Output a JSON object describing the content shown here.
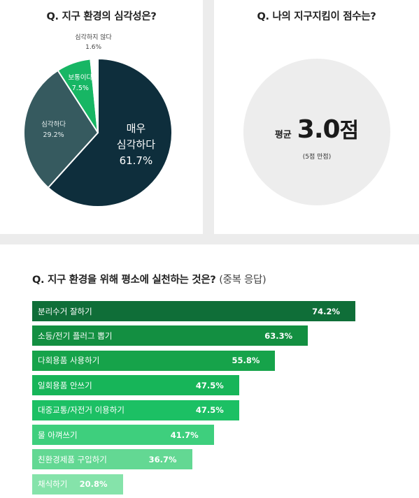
{
  "pie_card": {
    "title": "Q. 지구 환경의 심각성은?"
  },
  "score_card": {
    "title": "Q. 나의 지구지킴이 점수는?",
    "prefix": "평균",
    "value": "3.0",
    "unit": "점",
    "note": "(5점 만점)"
  },
  "bar_card": {
    "title": "Q. 지구 환경을 위해 평소에 실천하는 것은?",
    "subtitle": "(중복 응답)"
  },
  "colors": {
    "pie": [
      "#0e2e3c",
      "#365a5f",
      "#17b664",
      "#ffffff"
    ],
    "bars": [
      "#0f6e38",
      "#138f41",
      "#16a34a",
      "#17b559",
      "#1cc064",
      "#3ecf7d",
      "#63d893",
      "#85e3aa"
    ]
  },
  "chart_data": [
    {
      "type": "pie",
      "title": "Q. 지구 환경의 심각성은?",
      "slices": [
        {
          "name": "매우 심각하다",
          "value": 61.7,
          "label": "61.7%"
        },
        {
          "name": "심각하다",
          "value": 29.2,
          "label": "29.2%"
        },
        {
          "name": "보통이다",
          "value": 7.5,
          "label": "7.5%"
        },
        {
          "name": "심각하지 않다",
          "value": 1.6,
          "label": "1.6%"
        }
      ]
    },
    {
      "type": "bar",
      "orientation": "horizontal",
      "title": "Q. 지구 환경을 위해 평소에 실천하는 것은?",
      "categories": [
        "분리수거 잘하기",
        "소등/전기 플러그 뽑기",
        "다회용품 사용하기",
        "일회용품 안쓰기",
        "대중교통/자전거 이용하기",
        "물 아껴쓰기",
        "친환경제품 구입하기",
        "채식하기"
      ],
      "values": [
        74.2,
        63.3,
        55.8,
        47.5,
        47.5,
        41.7,
        36.7,
        20.8
      ],
      "labels": [
        "74.2%",
        "63.3%",
        "55.8%",
        "47.5%",
        "47.5%",
        "41.7%",
        "36.7%",
        "20.8%"
      ],
      "xlim": [
        0,
        74.2
      ]
    }
  ]
}
